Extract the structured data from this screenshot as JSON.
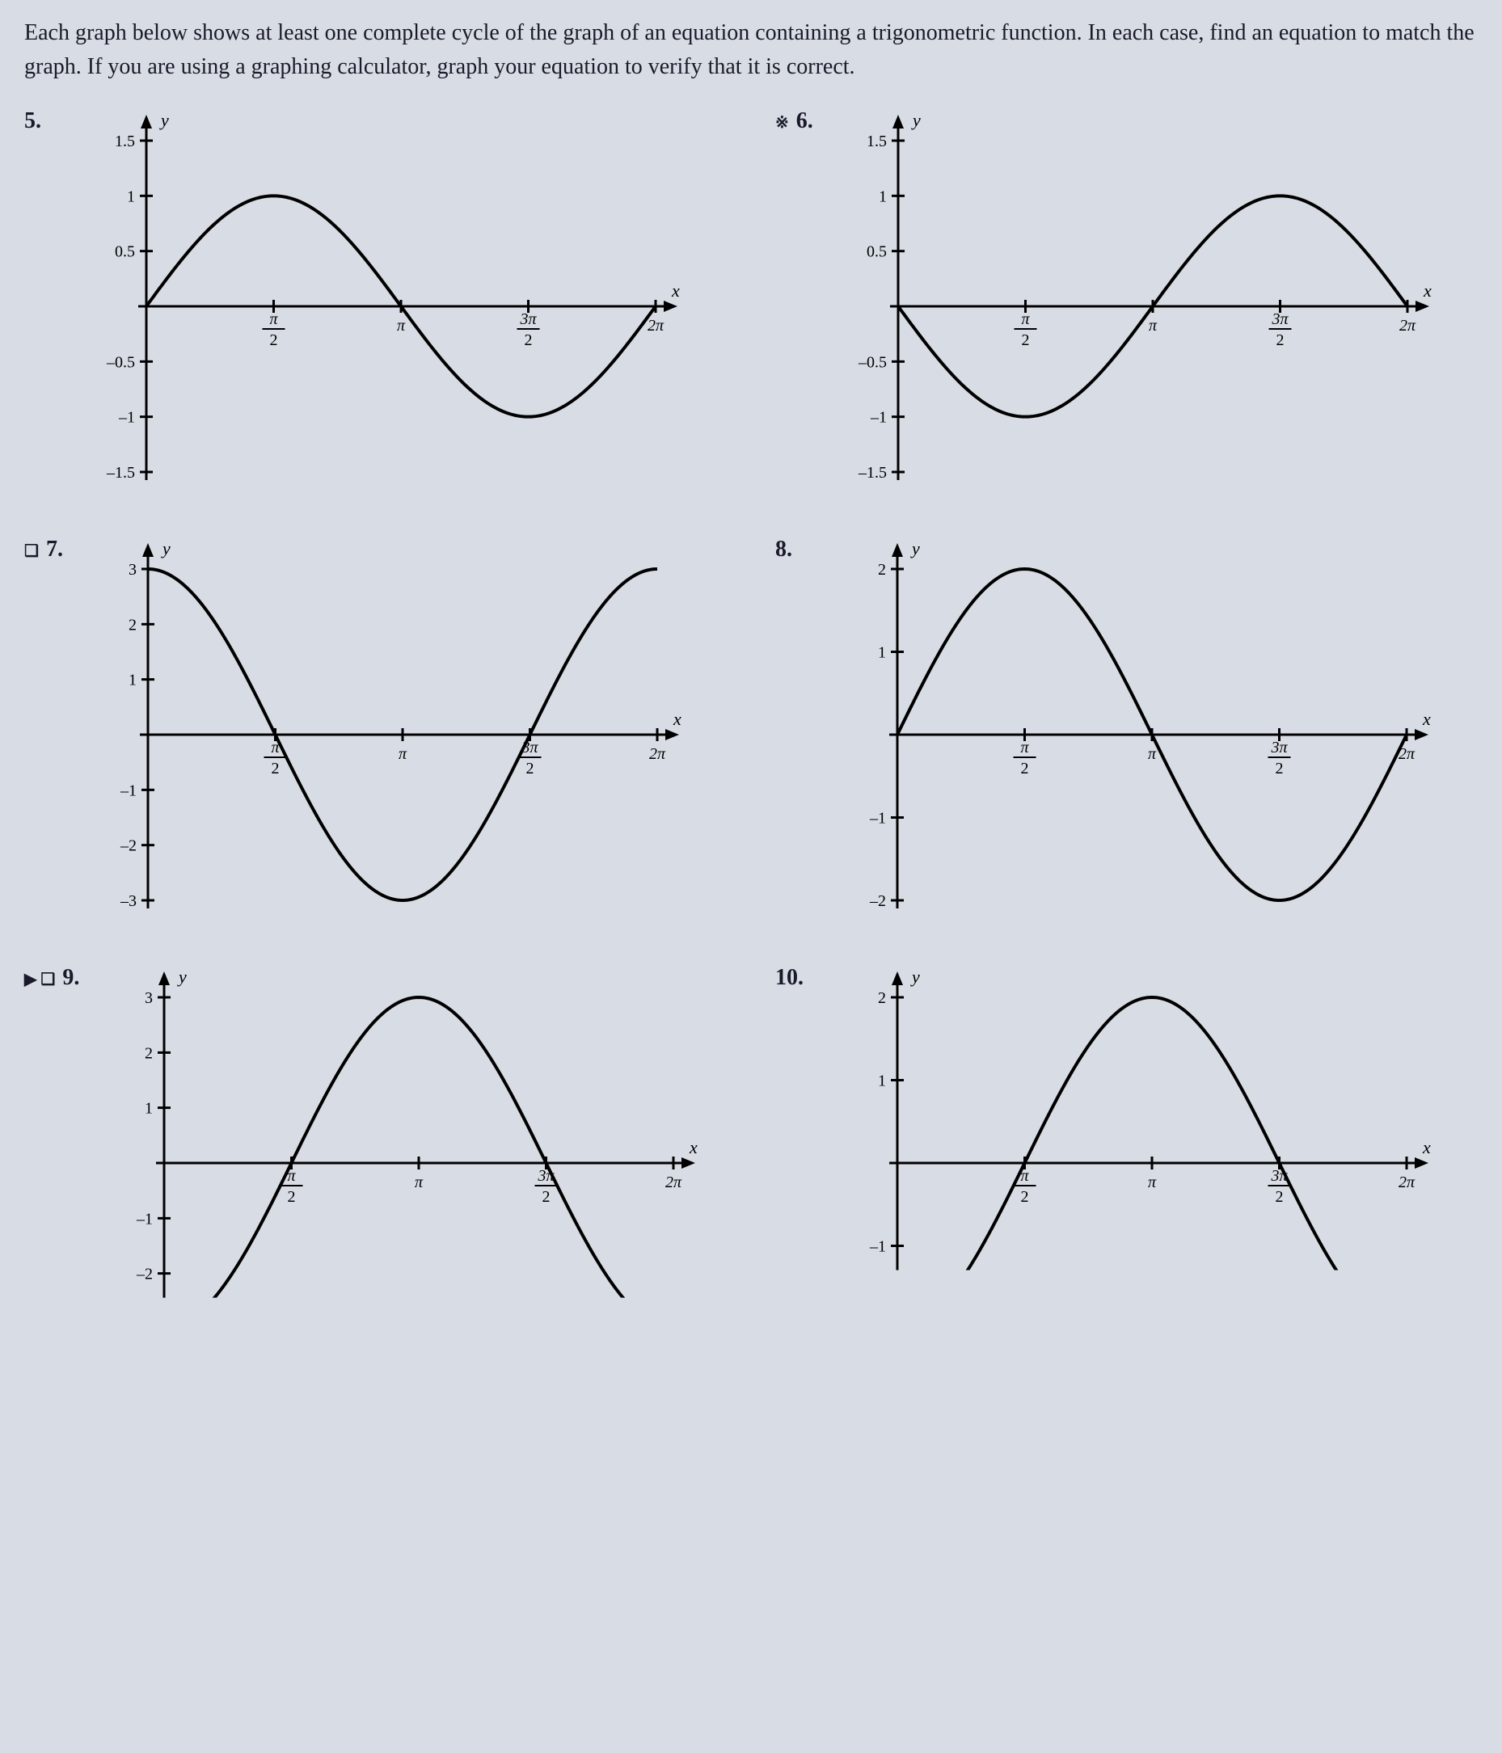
{
  "instructions": "Each graph below shows at least one complete cycle of the graph of an equation containing a trigonometric function. In each case, find an equation to match the graph. If you are using a graphing calculator, graph your equation to verify that it is correct.",
  "colors": {
    "background": "#d8dce4",
    "text": "#1a1a2a",
    "axis": "#000000",
    "curve": "#000000"
  },
  "common": {
    "xlim": [
      0,
      6.2832
    ],
    "xticks": [
      {
        "val": 1.5708,
        "num": "π",
        "den": "2"
      },
      {
        "val": 3.1416,
        "label": "π"
      },
      {
        "val": 4.7124,
        "num": "3π",
        "den": "2"
      },
      {
        "val": 6.2832,
        "label": "2π"
      }
    ],
    "x_axis_label": "x",
    "y_axis_label": "y",
    "axis_width": 3,
    "curve_width": 4,
    "tick_len": 8,
    "tick_fontsize": 20,
    "axis_label_fontsize": 22
  },
  "problems": [
    {
      "number": "5.",
      "marker": "",
      "type": "sin",
      "amplitude": 1,
      "vshift": 0,
      "phase": 0,
      "ylim": [
        -1.5,
        1.5
      ],
      "yticks": [
        -1.5,
        -1,
        -0.5,
        0.5,
        1,
        1.5
      ]
    },
    {
      "number": "6.",
      "marker": "※",
      "type": "sin",
      "amplitude": -1,
      "vshift": 0,
      "phase": 0,
      "ylim": [
        -1.5,
        1.5
      ],
      "yticks": [
        -1.5,
        -1,
        -0.5,
        0.5,
        1,
        1.5
      ]
    },
    {
      "number": "7.",
      "marker": "❏",
      "type": "cos",
      "amplitude": 3,
      "vshift": 0,
      "phase": 0,
      "ylim": [
        -3,
        3
      ],
      "yticks": [
        -3,
        -2,
        -1,
        1,
        2,
        3
      ]
    },
    {
      "number": "8.",
      "marker": "",
      "type": "sin",
      "amplitude": 2,
      "vshift": 0,
      "phase": 0,
      "ylim": [
        -2,
        2
      ],
      "yticks": [
        -2,
        -1,
        1,
        2
      ]
    },
    {
      "number": "9.",
      "marker": "▶ ❏",
      "type": "cos",
      "amplitude": -3,
      "vshift": 0,
      "phase": 0,
      "ylim": [
        -3,
        3
      ],
      "yticks": [
        -2,
        -1,
        1,
        2,
        3
      ],
      "y_bottom_clip": -2
    },
    {
      "number": "10.",
      "marker": "",
      "type": "cos",
      "amplitude": -2,
      "vshift": 0,
      "phase": 0,
      "ylim": [
        -2,
        2
      ],
      "yticks": [
        -1,
        1,
        2
      ],
      "y_bottom_clip": -1
    }
  ]
}
